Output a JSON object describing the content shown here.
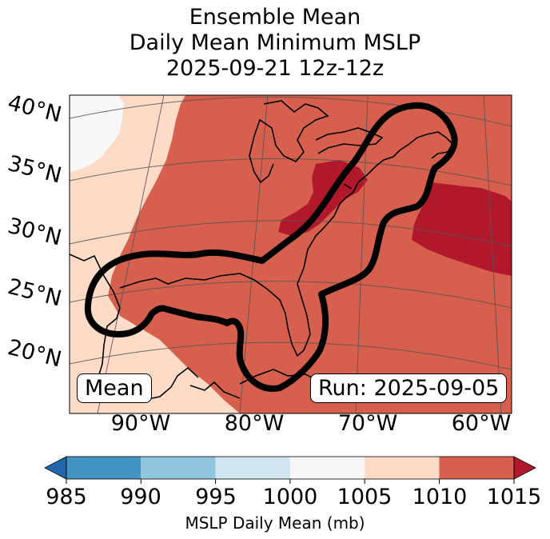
{
  "title": {
    "line1": "Ensemble Mean",
    "line2": "Daily Mean Minimum MSLP",
    "line3": "2025-09-21 12z-12z"
  },
  "map": {
    "lat_labels": [
      "40°N",
      "35°N",
      "30°N",
      "25°N",
      "20°N"
    ],
    "lon_labels": [
      "90°W",
      "80°W",
      "70°W",
      "60°W"
    ],
    "mean_box": "Mean",
    "run_box": "Run: 2025-09-05",
    "colors": {
      "c1000": "#f7f7f7",
      "c1005": "#fddbc7",
      "c1010": "#d6604d",
      "c1015": "#b2182b"
    }
  },
  "colorbar": {
    "ticks": [
      "985",
      "990",
      "995",
      "1000",
      "1005",
      "1010",
      "1015"
    ],
    "colors": [
      "#2166ac",
      "#4393c3",
      "#92c5de",
      "#d1e5f0",
      "#f7f7f7",
      "#fddbc7",
      "#d6604d",
      "#b2182b"
    ],
    "label": "MSLP Daily Mean (mb)"
  }
}
